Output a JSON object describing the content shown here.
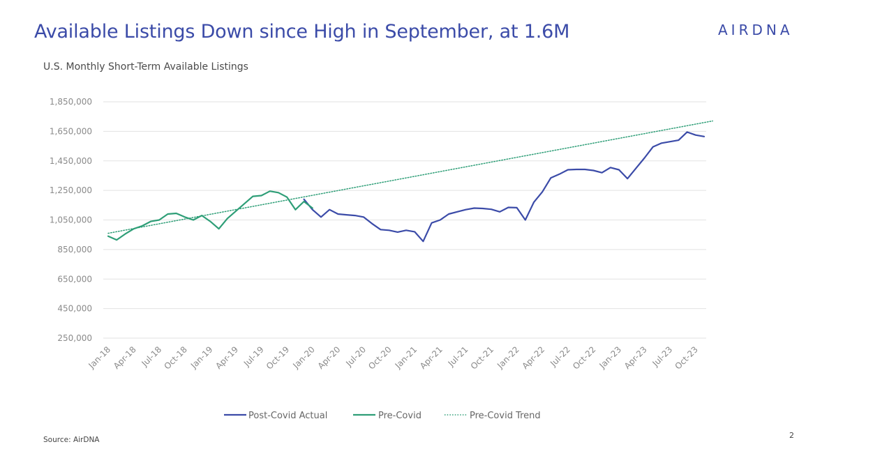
{
  "header": {
    "title": "Available Listings Down since High in September, at 1.6M",
    "logo_text": "AIRDNA",
    "subtitle": "U.S. Monthly Short-Term Available Listings"
  },
  "footer": {
    "source": "Source: AirDNA",
    "page_number": "2"
  },
  "colors": {
    "brand": "#3b4ba8",
    "post_covid": "#3b4ba8",
    "pre_covid": "#2e9e77",
    "trend": "#2e9e77",
    "grid": "#e2e2e2"
  },
  "chart_data": {
    "type": "line",
    "title": "U.S. Monthly Short-Term Available Listings",
    "xlabel": "",
    "ylabel": "",
    "ylim": [
      250000,
      1850000
    ],
    "yticks": [
      250000,
      450000,
      650000,
      850000,
      1050000,
      1250000,
      1450000,
      1650000,
      1850000
    ],
    "ytick_labels": [
      "250,000",
      "450,000",
      "650,000",
      "850,000",
      "1,050,000",
      "1,250,000",
      "1,450,000",
      "1,650,000",
      "1,850,000"
    ],
    "xtick_labels": [
      "Jan-18",
      "Apr-18",
      "Jul-18",
      "Oct-18",
      "Jan-19",
      "Apr-19",
      "Jul-19",
      "Oct-19",
      "Jan-20",
      "Apr-20",
      "Jul-20",
      "Oct-20",
      "Jan-21",
      "Apr-21",
      "Jul-21",
      "Oct-21",
      "Jan-22",
      "Apr-22",
      "Jul-22",
      "Oct-22",
      "Jan-23",
      "Apr-23",
      "Jul-23",
      "Oct-23"
    ],
    "grid": true,
    "legend_position": "bottom",
    "series": [
      {
        "name": "Post-Covid Actual",
        "start": "Dec-19",
        "values": [
          1190000,
          1120000,
          1070000,
          1120000,
          1090000,
          1085000,
          1080000,
          1070000,
          1025000,
          985000,
          980000,
          968000,
          980000,
          970000,
          905000,
          1030000,
          1050000,
          1090000,
          1105000,
          1120000,
          1130000,
          1128000,
          1122000,
          1105000,
          1135000,
          1133000,
          1050000,
          1170000,
          1240000,
          1335000,
          1360000,
          1390000,
          1392000,
          1392000,
          1385000,
          1370000,
          1405000,
          1390000,
          1330000,
          1400000,
          1470000,
          1545000,
          1570000,
          1580000,
          1590000,
          1645000,
          1625000,
          1615000
        ]
      },
      {
        "name": "Pre-Covid",
        "start": "Jan-18",
        "values": [
          940000,
          915000,
          955000,
          990000,
          1010000,
          1040000,
          1050000,
          1090000,
          1095000,
          1070000,
          1050000,
          1080000,
          1040000,
          990000,
          1060000,
          1110000,
          1160000,
          1210000,
          1215000,
          1245000,
          1235000,
          1205000,
          1120000,
          1175000,
          1130000
        ]
      },
      {
        "name": "Pre-Covid Trend",
        "start": "Jan-18",
        "end": "Dec-23",
        "start_value": 960000,
        "end_value": 1720000
      }
    ]
  }
}
